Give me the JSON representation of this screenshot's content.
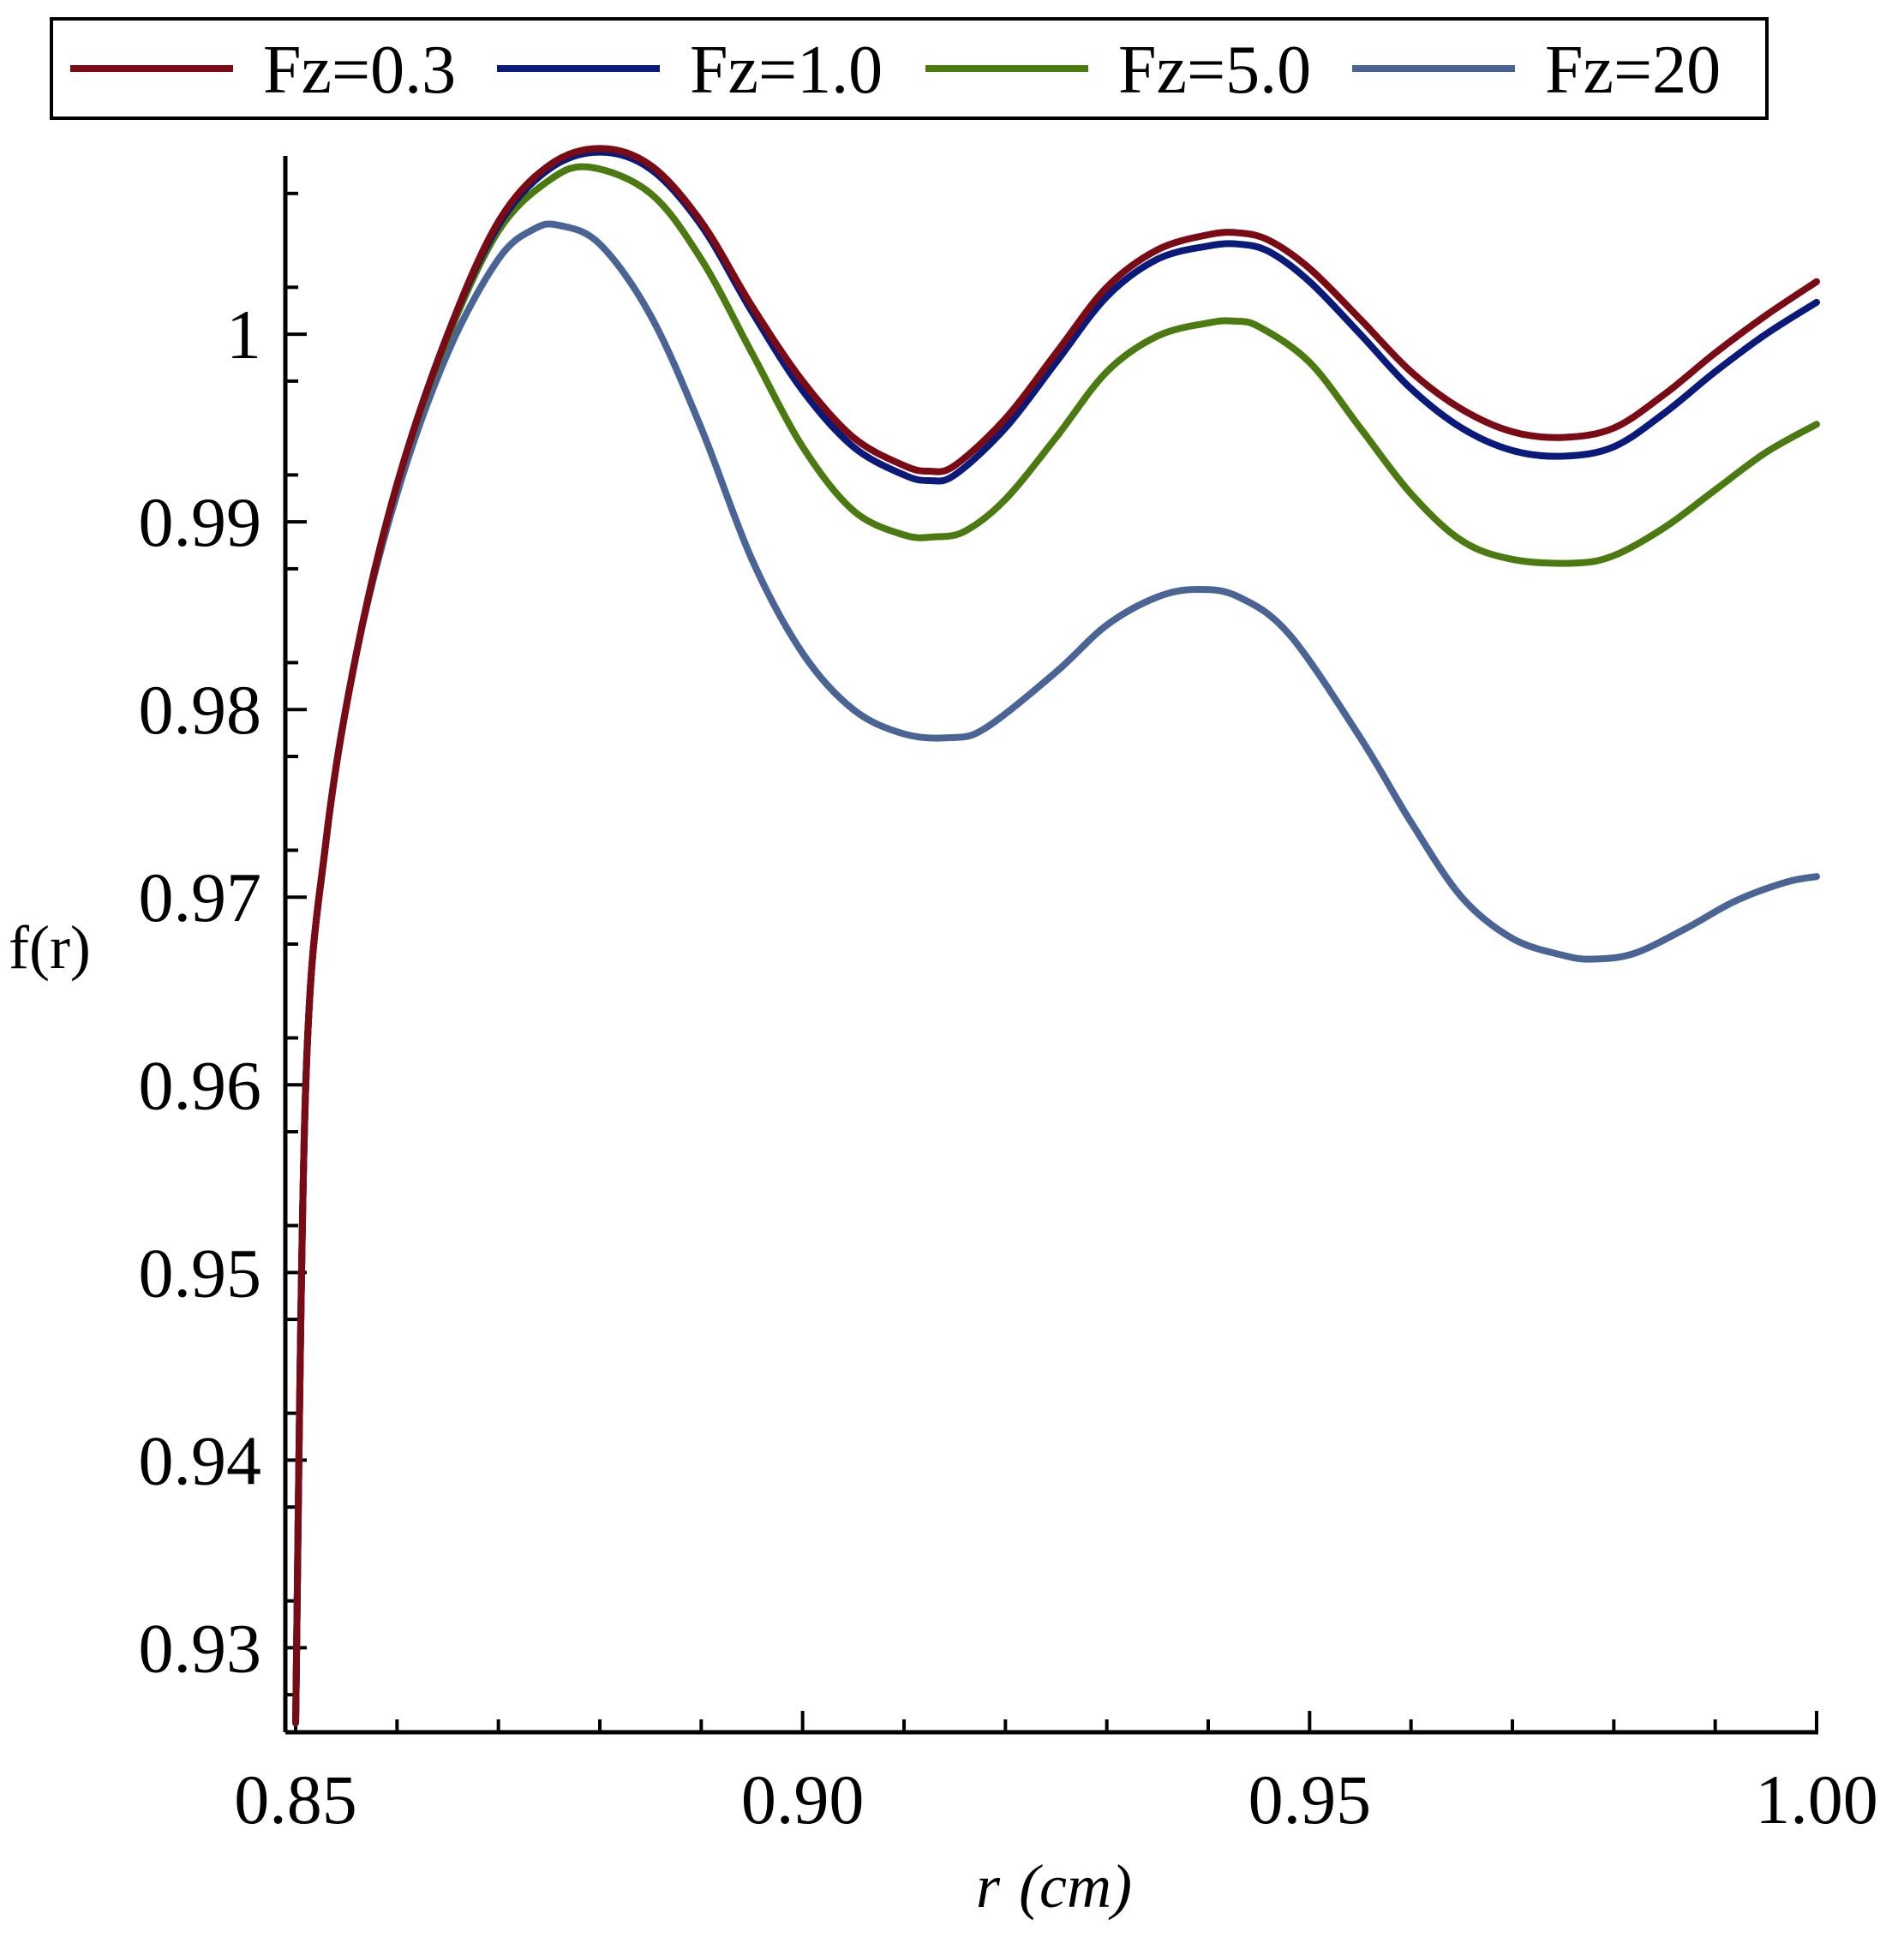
{
  "chart_data": {
    "type": "line",
    "title": "",
    "xlabel_main": "r",
    "xlabel_unit": "(cm)",
    "ylabel": "f(r)",
    "xlim": [
      0.85,
      1.0
    ],
    "ylim": [
      0.9255,
      1.0095
    ],
    "x_ticks": [
      0.85,
      0.9,
      0.95,
      1.0
    ],
    "x_tick_labels": [
      "0.85",
      "0.90",
      "0.95",
      "1.00"
    ],
    "y_ticks": [
      0.93,
      0.94,
      0.95,
      0.96,
      0.97,
      0.98,
      0.99,
      1.0
    ],
    "y_tick_labels": [
      "0.93",
      "0.94",
      "0.95",
      "0.96",
      "0.97",
      "0.98",
      "0.99",
      "1"
    ],
    "grid": false,
    "legend_position": "top",
    "series": [
      {
        "name": "Fz=0.3",
        "color": "#7a0a14",
        "x": [
          0.85,
          0.851,
          0.853,
          0.856,
          0.86,
          0.865,
          0.87,
          0.875,
          0.88,
          0.885,
          0.89,
          0.895,
          0.9,
          0.905,
          0.91,
          0.9125,
          0.915,
          0.92,
          0.925,
          0.93,
          0.935,
          0.94,
          0.943,
          0.946,
          0.95,
          0.955,
          0.96,
          0.965,
          0.97,
          0.975,
          0.98,
          0.985,
          0.99,
          0.995,
          1.0
        ],
        "y": [
          0.926,
          0.96,
          0.973,
          0.983,
          0.992,
          1.0,
          1.006,
          1.009,
          1.0099,
          1.009,
          1.006,
          1.0015,
          0.9975,
          0.9945,
          0.993,
          0.9927,
          0.993,
          0.9955,
          0.999,
          1.0025,
          1.0045,
          1.0053,
          1.0054,
          1.005,
          1.0035,
          1.0008,
          0.998,
          0.996,
          0.9948,
          0.9945,
          0.995,
          0.9968,
          0.999,
          1.001,
          1.0028
        ]
      },
      {
        "name": "Fz=1.0",
        "color": "#0a1a7a",
        "x": [
          0.85,
          0.851,
          0.853,
          0.856,
          0.86,
          0.865,
          0.87,
          0.875,
          0.88,
          0.885,
          0.89,
          0.895,
          0.9,
          0.905,
          0.91,
          0.9125,
          0.915,
          0.92,
          0.925,
          0.93,
          0.935,
          0.94,
          0.943,
          0.946,
          0.95,
          0.955,
          0.96,
          0.965,
          0.97,
          0.975,
          0.98,
          0.985,
          0.99,
          0.995,
          1.0
        ],
        "y": [
          0.926,
          0.96,
          0.973,
          0.983,
          0.992,
          1.0,
          1.0058,
          1.0088,
          1.0097,
          1.0088,
          1.0058,
          1.0012,
          0.997,
          0.994,
          0.9925,
          0.9922,
          0.9925,
          0.995,
          0.9985,
          1.002,
          1.004,
          1.0047,
          1.0048,
          1.0044,
          1.0028,
          1.0,
          0.9971,
          0.995,
          0.9938,
          0.9935,
          0.994,
          0.9958,
          0.998,
          1.0,
          1.0017
        ]
      },
      {
        "name": "Fz=5.0",
        "color": "#4a7a10",
        "x": [
          0.85,
          0.851,
          0.853,
          0.856,
          0.86,
          0.865,
          0.87,
          0.875,
          0.879,
          0.885,
          0.89,
          0.895,
          0.9,
          0.905,
          0.91,
          0.913,
          0.916,
          0.92,
          0.925,
          0.93,
          0.935,
          0.94,
          0.9425,
          0.945,
          0.95,
          0.955,
          0.96,
          0.965,
          0.97,
          0.976,
          0.98,
          0.985,
          0.99,
          0.995,
          1.0
        ],
        "y": [
          0.926,
          0.96,
          0.973,
          0.983,
          0.992,
          0.9998,
          1.0055,
          1.0082,
          1.0089,
          1.0075,
          1.004,
          0.999,
          0.994,
          0.9906,
          0.9893,
          0.9892,
          0.9895,
          0.9912,
          0.9945,
          0.998,
          0.9999,
          1.0006,
          1.0007,
          1.0004,
          0.9985,
          0.995,
          0.9915,
          0.989,
          0.988,
          0.9878,
          0.9882,
          0.9897,
          0.9917,
          0.9937,
          0.9952
        ]
      },
      {
        "name": "Fz=20",
        "color": "#4a6595",
        "x": [
          0.85,
          0.851,
          0.853,
          0.856,
          0.86,
          0.865,
          0.87,
          0.8735,
          0.876,
          0.88,
          0.885,
          0.89,
          0.895,
          0.9,
          0.905,
          0.91,
          0.9145,
          0.918,
          0.925,
          0.93,
          0.935,
          0.939,
          0.943,
          0.948,
          0.955,
          0.96,
          0.965,
          0.97,
          0.975,
          0.978,
          0.982,
          0.987,
          0.992,
          0.997,
          1.0
        ],
        "y": [
          0.926,
          0.96,
          0.973,
          0.983,
          0.9915,
          0.999,
          1.004,
          1.0056,
          1.0058,
          1.0048,
          1.001,
          0.995,
          0.988,
          0.983,
          0.98,
          0.9787,
          0.9785,
          0.979,
          0.982,
          0.9845,
          0.986,
          0.9864,
          0.986,
          0.984,
          0.9785,
          0.974,
          0.97,
          0.9678,
          0.9669,
          0.9667,
          0.967,
          0.9683,
          0.9698,
          0.9708,
          0.9711
        ]
      }
    ]
  }
}
